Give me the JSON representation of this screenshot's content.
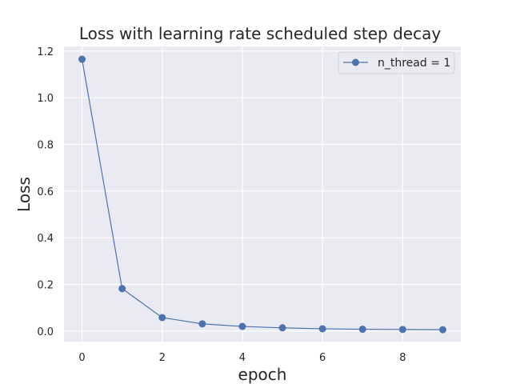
{
  "chart_data": {
    "type": "line",
    "title": "Loss with learning rate scheduled step decay",
    "xlabel": "epoch",
    "ylabel": "Loss",
    "xlim": [
      -0.45,
      9.45
    ],
    "ylim": [
      -0.045,
      1.22
    ],
    "x_ticks": [
      0,
      2,
      4,
      6,
      8
    ],
    "y_ticks": [
      0.0,
      0.2,
      0.4,
      0.6,
      0.8,
      1.0,
      1.2
    ],
    "grid": true,
    "legend_position": "top-right",
    "background": "#eaeaf2",
    "grid_color": "#ffffff",
    "x": [
      0,
      1,
      2,
      3,
      4,
      5,
      6,
      7,
      8,
      9
    ],
    "series": [
      {
        "name": "n_thread = 1",
        "color": "#4c72b0",
        "marker": "circle",
        "values": [
          1.165,
          0.182,
          0.058,
          0.031,
          0.02,
          0.014,
          0.01,
          0.008,
          0.007,
          0.006
        ]
      }
    ]
  }
}
